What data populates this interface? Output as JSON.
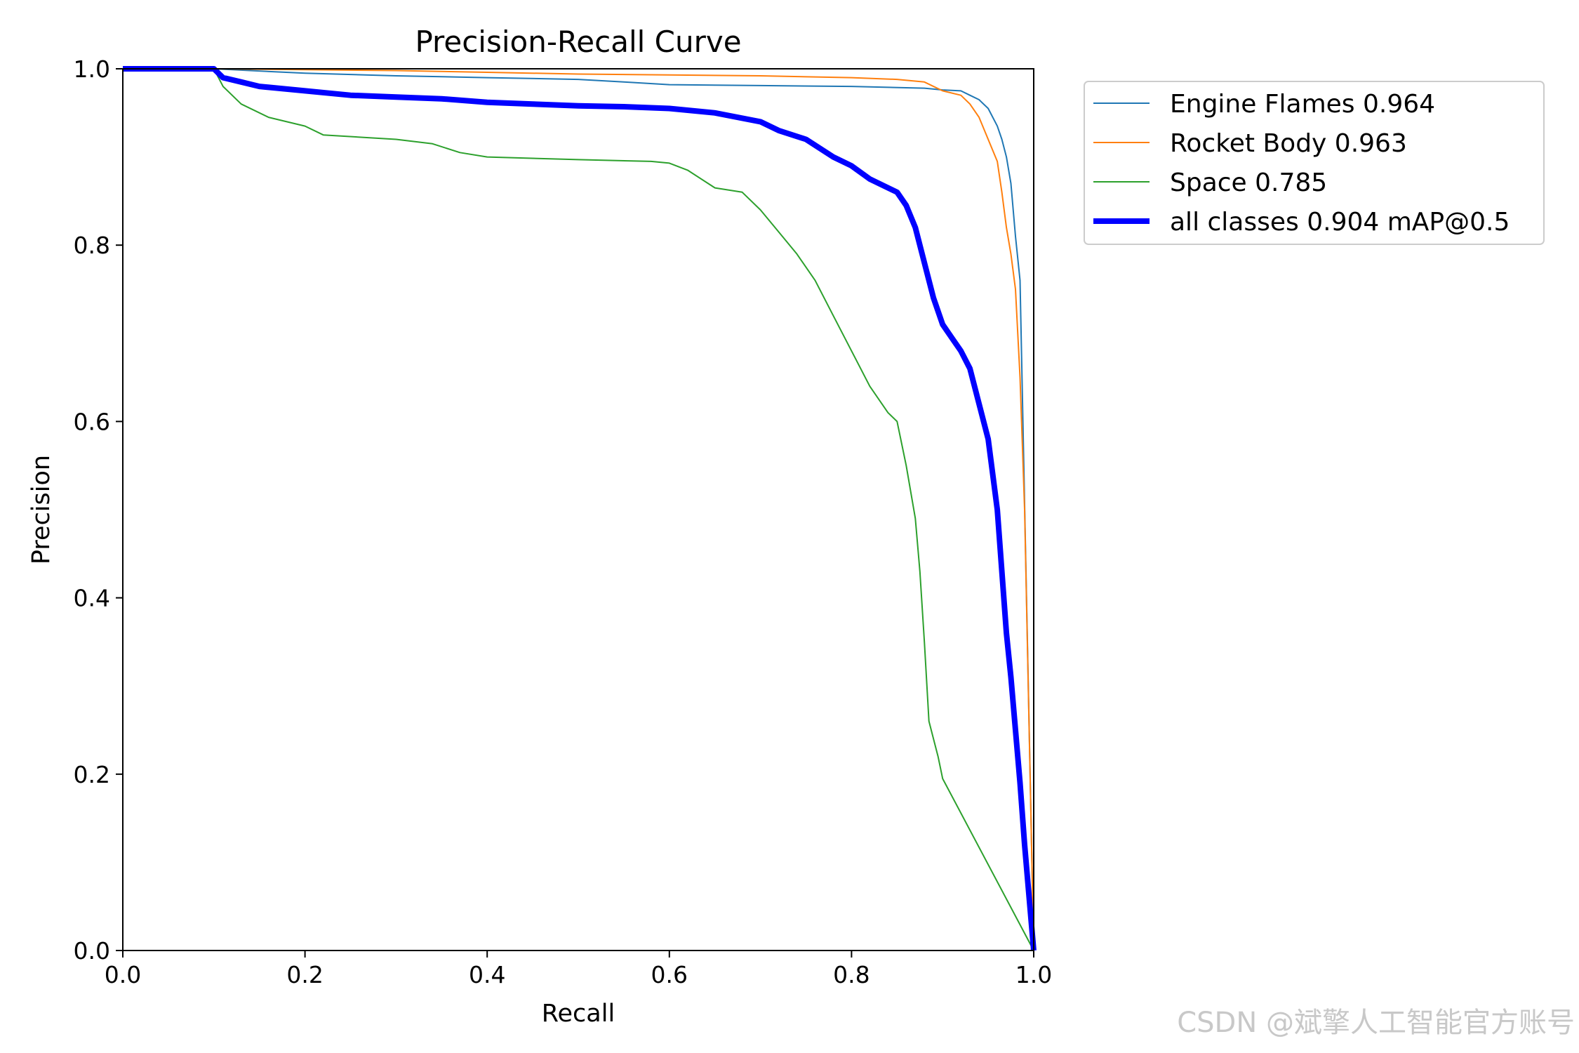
{
  "watermark": "CSDN @斌擎人工智能官方账号",
  "chart_data": {
    "type": "line",
    "title": "Precision-Recall Curve",
    "xlabel": "Recall",
    "ylabel": "Precision",
    "xlim": [
      0,
      1
    ],
    "ylim": [
      0,
      1
    ],
    "xticks": [
      "0.0",
      "0.2",
      "0.4",
      "0.6",
      "0.8",
      "1.0"
    ],
    "yticks": [
      "0.0",
      "0.2",
      "0.4",
      "0.6",
      "0.8",
      "1.0"
    ],
    "grid": false,
    "legend_position": "outside-top-right",
    "series": [
      {
        "name": "Engine Flames 0.964",
        "color": "#1f77b4",
        "width": 2,
        "x": [
          0,
          0.1,
          0.2,
          0.3,
          0.4,
          0.5,
          0.55,
          0.6,
          0.7,
          0.8,
          0.88,
          0.9,
          0.92,
          0.93,
          0.94,
          0.95,
          0.96,
          0.965,
          0.97,
          0.975,
          0.98,
          0.985,
          1.0
        ],
        "y": [
          1,
          1,
          0.995,
          0.992,
          0.99,
          0.988,
          0.985,
          0.982,
          0.981,
          0.98,
          0.978,
          0.976,
          0.975,
          0.97,
          0.965,
          0.955,
          0.935,
          0.92,
          0.9,
          0.87,
          0.81,
          0.76,
          0.0
        ]
      },
      {
        "name": "Rocket Body 0.963",
        "color": "#ff7f0e",
        "width": 2,
        "x": [
          0,
          0.1,
          0.2,
          0.3,
          0.4,
          0.5,
          0.6,
          0.7,
          0.8,
          0.85,
          0.88,
          0.9,
          0.92,
          0.93,
          0.94,
          0.95,
          0.96,
          0.965,
          0.97,
          0.975,
          0.98,
          0.985,
          0.99,
          1.0
        ],
        "y": [
          1,
          1,
          0.999,
          0.998,
          0.996,
          0.994,
          0.993,
          0.992,
          0.99,
          0.988,
          0.985,
          0.975,
          0.97,
          0.96,
          0.945,
          0.92,
          0.895,
          0.86,
          0.82,
          0.79,
          0.75,
          0.65,
          0.5,
          0.0
        ]
      },
      {
        "name": "Space 0.785",
        "color": "#2ca02c",
        "width": 2,
        "x": [
          0,
          0.1,
          0.11,
          0.13,
          0.16,
          0.2,
          0.22,
          0.3,
          0.34,
          0.37,
          0.4,
          0.5,
          0.58,
          0.6,
          0.62,
          0.65,
          0.68,
          0.7,
          0.72,
          0.74,
          0.76,
          0.78,
          0.8,
          0.82,
          0.84,
          0.85,
          0.86,
          0.87,
          0.875,
          0.88,
          0.885,
          0.89,
          0.895,
          0.9,
          1.0
        ],
        "y": [
          1,
          1,
          0.98,
          0.96,
          0.945,
          0.935,
          0.925,
          0.92,
          0.915,
          0.905,
          0.9,
          0.897,
          0.895,
          0.893,
          0.885,
          0.865,
          0.86,
          0.84,
          0.815,
          0.79,
          0.76,
          0.72,
          0.68,
          0.64,
          0.61,
          0.6,
          0.55,
          0.49,
          0.43,
          0.35,
          0.26,
          0.24,
          0.22,
          0.195,
          0.0
        ]
      },
      {
        "name": "all classes 0.904 mAP@0.5",
        "color": "#0000ff",
        "width": 8,
        "x": [
          0,
          0.1,
          0.11,
          0.13,
          0.15,
          0.2,
          0.25,
          0.3,
          0.35,
          0.4,
          0.45,
          0.5,
          0.55,
          0.6,
          0.65,
          0.7,
          0.72,
          0.75,
          0.78,
          0.8,
          0.82,
          0.85,
          0.86,
          0.87,
          0.88,
          0.89,
          0.9,
          0.91,
          0.92,
          0.93,
          0.94,
          0.95,
          0.96,
          0.965,
          0.97,
          0.975,
          0.98,
          0.985,
          0.99,
          1.0
        ],
        "y": [
          1,
          1,
          0.99,
          0.985,
          0.98,
          0.975,
          0.97,
          0.968,
          0.966,
          0.962,
          0.96,
          0.958,
          0.957,
          0.955,
          0.95,
          0.94,
          0.93,
          0.92,
          0.9,
          0.89,
          0.875,
          0.86,
          0.845,
          0.82,
          0.78,
          0.74,
          0.71,
          0.695,
          0.68,
          0.66,
          0.62,
          0.58,
          0.5,
          0.43,
          0.36,
          0.31,
          0.25,
          0.19,
          0.12,
          0.0
        ]
      }
    ]
  }
}
